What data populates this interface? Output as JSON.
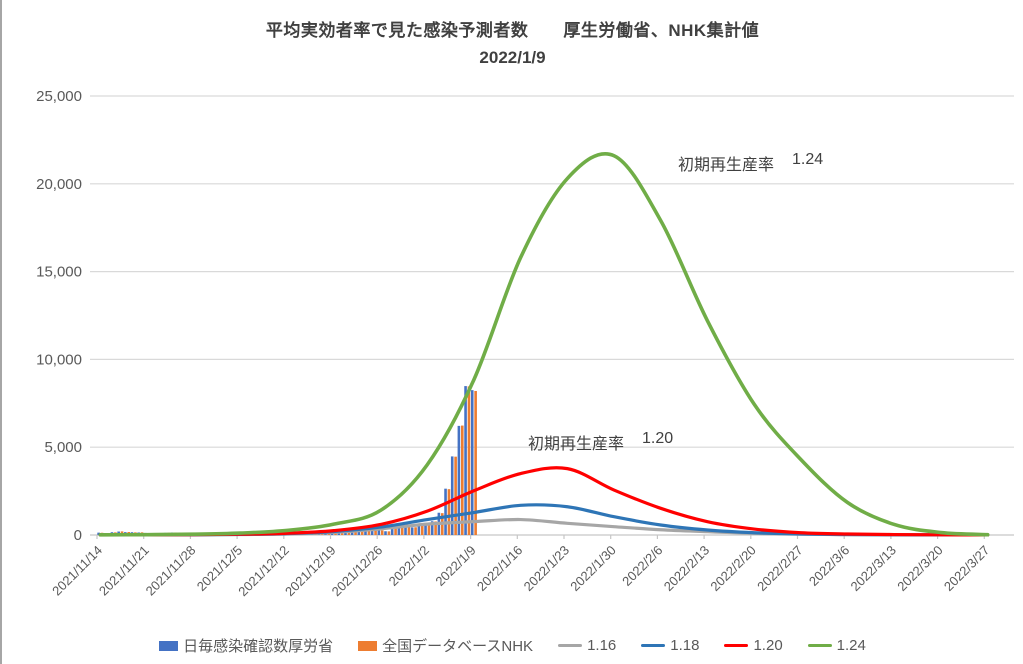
{
  "title": {
    "line1": "平均実効者率で見た感染予測者数　　厚生労働省、NHK集計値",
    "line2": "2022/1/9"
  },
  "annotations": [
    {
      "label": "初期再生産率",
      "value": "1.24"
    },
    {
      "label": "初期再生産率",
      "value": "1.20"
    }
  ],
  "legend": {
    "bar_items": [
      {
        "label": "日毎感染確認数厚労省",
        "color": "#4472C4"
      },
      {
        "label": "全国データベースNHK",
        "color": "#ED7D31"
      }
    ],
    "line_items": [
      {
        "label": "1.16",
        "color": "#A6A6A6"
      },
      {
        "label": "1.18",
        "color": "#2E75B6"
      },
      {
        "label": "1.20",
        "color": "#FF0000"
      },
      {
        "label": "1.24",
        "color": "#70AD47"
      }
    ]
  },
  "colors": {
    "gridline": "#D9D9D9",
    "axis": "#C6C6C6",
    "text_dark": "#404040",
    "text_axis": "#595959"
  },
  "chart_data": {
    "type": "combo-bar-line",
    "title": "平均実効者率で見た感染予測者数 厚生労働省、NHK集計値 2022/1/9",
    "x_axis": {
      "categories": [
        "2021/11/14",
        "2021/11/21",
        "2021/11/28",
        "2021/12/5",
        "2021/12/12",
        "2021/12/19",
        "2021/12/26",
        "2022/1/2",
        "2022/1/9",
        "2022/1/16",
        "2022/1/23",
        "2022/1/30",
        "2022/2/6",
        "2022/2/13",
        "2022/2/20",
        "2022/2/27",
        "2022/3/6",
        "2022/3/13",
        "2022/3/20",
        "2022/3/27"
      ],
      "days_per_category": 7
    },
    "y_axis": {
      "min": 0,
      "max": 25000,
      "tick_step": 5000,
      "tick_labels": [
        "0",
        "5,000",
        "10,000",
        "15,000",
        "20,000",
        "25,000"
      ],
      "grid": true
    },
    "bars": {
      "note": "daily values from 2021/11/14 through 2022/1/9",
      "start_date": "2021/11/14",
      "end_date": "2022/1/9",
      "series": [
        {
          "name": "日毎感染確認数厚労省",
          "color": "#4472C4",
          "values": [
            134,
            79,
            159,
            198,
            163,
            159,
            144,
            118,
            50,
            113,
            120,
            142,
            121,
            122,
            73,
            48,
            106,
            119,
            124,
            130,
            116,
            62,
            46,
            106,
            156,
            143,
            127,
            119,
            85,
            60,
            120,
            160,
            167,
            177,
            181,
            152,
            90,
            176,
            263,
            313,
            322,
            309,
            261,
            214,
            389,
            502,
            498,
            433,
            534,
            554,
            782,
            1268,
            2638,
            4475,
            6214,
            8480,
            8249
          ]
        },
        {
          "name": "全国データベースNHK",
          "color": "#ED7D31",
          "values": [
            128,
            85,
            150,
            205,
            170,
            150,
            152,
            110,
            57,
            108,
            126,
            134,
            128,
            115,
            80,
            52,
            100,
            124,
            118,
            136,
            110,
            67,
            50,
            99,
            149,
            150,
            121,
            124,
            90,
            56,
            113,
            154,
            171,
            170,
            190,
            146,
            95,
            170,
            255,
            320,
            316,
            301,
            267,
            208,
            381,
            512,
            490,
            441,
            528,
            561,
            771,
            1244,
            2610,
            4461,
            6232,
            8463,
            8200
          ]
        }
      ]
    },
    "series": [
      {
        "name": "1.16",
        "color": "#A6A6A6",
        "peak": {
          "date": "2022/1/15",
          "value": 890
        },
        "values": [
          3,
          6,
          12,
          25,
          60,
          150,
          350,
          620,
          760,
          880,
          665,
          475,
          300,
          190,
          95,
          45,
          20,
          10,
          5,
          3
        ]
      },
      {
        "name": "1.18",
        "color": "#2E75B6",
        "peak": {
          "date": "2022/1/18",
          "value": 1710
        },
        "values": [
          4,
          8,
          15,
          35,
          80,
          200,
          450,
          880,
          1280,
          1690,
          1610,
          1040,
          570,
          285,
          130,
          55,
          25,
          10,
          5,
          3
        ]
      },
      {
        "name": "1.20",
        "color": "#FF0000",
        "peak": {
          "date": "2022/1/21",
          "value": 3800
        },
        "values": [
          5,
          10,
          20,
          45,
          100,
          250,
          600,
          1360,
          2520,
          3500,
          3780,
          2560,
          1520,
          760,
          340,
          130,
          55,
          25,
          10,
          5
        ]
      },
      {
        "name": "1.24",
        "color": "#70AD47",
        "peak": {
          "date": "2022/1/30",
          "value": 21600
        },
        "values": [
          8,
          20,
          45,
          110,
          260,
          620,
          1400,
          4000,
          8850,
          15800,
          20300,
          21600,
          17900,
          12200,
          7450,
          4300,
          1850,
          600,
          140,
          20
        ]
      }
    ]
  }
}
